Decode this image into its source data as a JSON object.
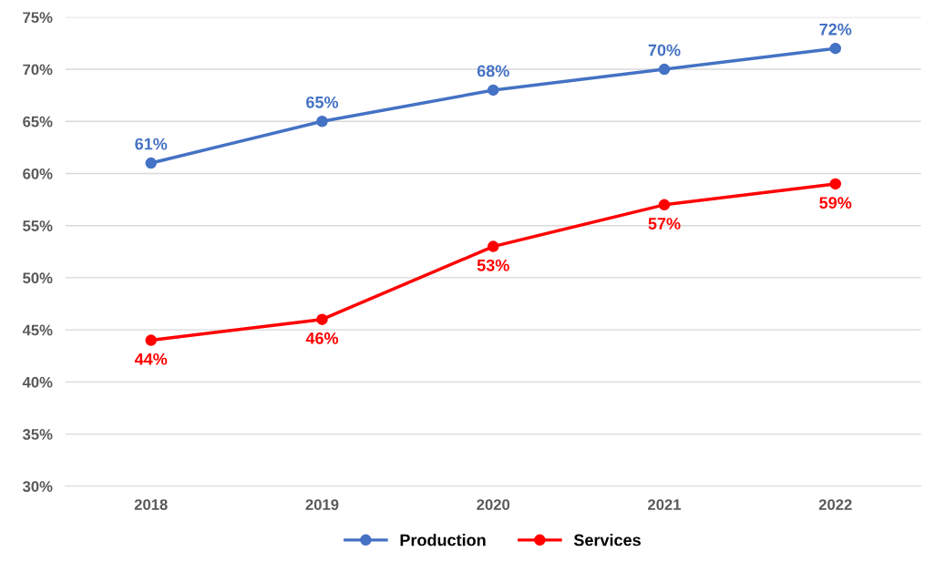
{
  "chart_data": {
    "type": "line",
    "categories": [
      "2018",
      "2019",
      "2020",
      "2021",
      "2022"
    ],
    "series": [
      {
        "name": "Production",
        "color": "#4472c4",
        "values": [
          61,
          65,
          68,
          70,
          72
        ],
        "value_labels": [
          "61%",
          "65%",
          "68%",
          "70%",
          "72%"
        ]
      },
      {
        "name": "Services",
        "color": "#ff0000",
        "values": [
          44,
          46,
          53,
          57,
          59
        ],
        "value_labels": [
          "44%",
          "46%",
          "53%",
          "57%",
          "59%"
        ]
      }
    ],
    "ylim": [
      30,
      75
    ],
    "yticks": [
      {
        "value": 30,
        "label": "30%"
      },
      {
        "value": 35,
        "label": "35%"
      },
      {
        "value": 40,
        "label": "40%"
      },
      {
        "value": 45,
        "label": "45%"
      },
      {
        "value": 50,
        "label": "50%"
      },
      {
        "value": 55,
        "label": "55%"
      },
      {
        "value": 60,
        "label": "60%"
      },
      {
        "value": 65,
        "label": "65%"
      },
      {
        "value": 70,
        "label": "70%"
      },
      {
        "value": 75,
        "label": "75%"
      }
    ],
    "grid": "y",
    "legend": "bottom",
    "marker": "circle",
    "line_style": "solid"
  }
}
